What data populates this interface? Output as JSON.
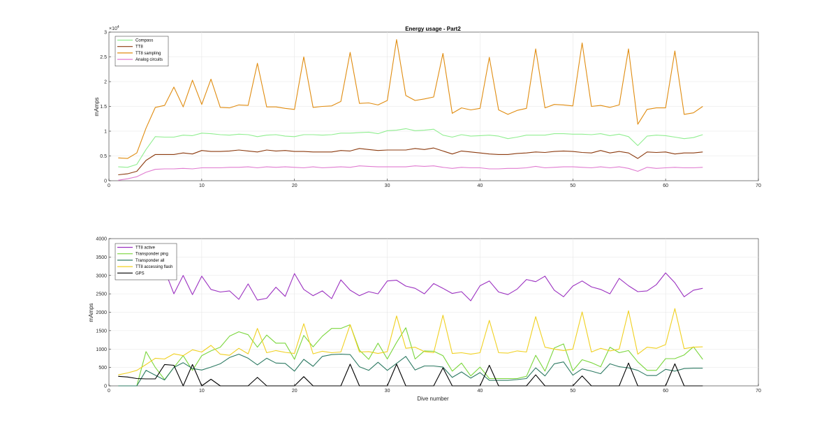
{
  "chart_data": [
    {
      "type": "line",
      "title": "Energy usage - Part2",
      "xlabel": "",
      "ylabel": "mAmps",
      "y_exponent_label": "×10",
      "y_exponent": "4",
      "xlim": [
        0,
        70
      ],
      "ylim": [
        0,
        30000
      ],
      "xticks": [
        0,
        10,
        20,
        30,
        40,
        50,
        60,
        70
      ],
      "yticks": [
        0,
        5000,
        10000,
        15000,
        20000,
        25000,
        30000
      ],
      "ytick_labels": [
        "0",
        "0.5",
        "1",
        "1.5",
        "2",
        "2.5",
        "3"
      ],
      "grid": true,
      "legend_position": "top-left",
      "x": [
        1,
        2,
        3,
        4,
        5,
        6,
        7,
        8,
        9,
        10,
        11,
        12,
        13,
        14,
        15,
        16,
        17,
        18,
        19,
        20,
        21,
        22,
        23,
        24,
        25,
        26,
        27,
        28,
        29,
        30,
        31,
        32,
        33,
        34,
        35,
        36,
        37,
        38,
        39,
        40,
        41,
        42,
        43,
        44,
        45,
        46,
        47,
        48,
        49,
        50,
        51,
        52,
        53,
        54,
        55,
        56,
        57,
        58,
        59,
        60,
        61,
        62,
        63,
        64
      ],
      "series": [
        {
          "name": "Compass",
          "color": "#90ee90",
          "values": [
            2800,
            2700,
            3300,
            6300,
            8900,
            8800,
            8800,
            9200,
            9100,
            9600,
            9500,
            9300,
            9200,
            9400,
            9300,
            8900,
            9200,
            9300,
            9000,
            8900,
            9300,
            9300,
            9200,
            9300,
            9600,
            9600,
            9700,
            9800,
            9500,
            10100,
            10200,
            10500,
            10100,
            10200,
            10400,
            9200,
            8800,
            9300,
            9000,
            9100,
            9200,
            9000,
            8500,
            8800,
            9200,
            9200,
            9200,
            9500,
            9500,
            9400,
            9400,
            9300,
            9500,
            9100,
            9400,
            8900,
            7100,
            9000,
            9200,
            9100,
            8800,
            8500,
            8700,
            9300
          ]
        },
        {
          "name": "TT8",
          "color": "#8b3a0e",
          "values": [
            1200,
            1400,
            1900,
            4100,
            5300,
            5300,
            5300,
            5600,
            5400,
            6100,
            5900,
            5900,
            6000,
            6200,
            6000,
            5800,
            6200,
            6000,
            6100,
            5900,
            5900,
            5800,
            5800,
            5800,
            6100,
            6000,
            6500,
            6300,
            6100,
            6200,
            6200,
            6200,
            6500,
            6300,
            6600,
            6000,
            5400,
            6000,
            5800,
            5600,
            5400,
            5300,
            5300,
            5500,
            5600,
            5800,
            5700,
            5900,
            6000,
            5900,
            5700,
            5600,
            6100,
            5600,
            5900,
            5600,
            4500,
            5800,
            5700,
            5800,
            5400,
            5600,
            5600,
            5800
          ]
        },
        {
          "name": "TT8 sampling",
          "color": "#e08c10",
          "values": [
            4600,
            4500,
            5600,
            10600,
            14800,
            15200,
            18900,
            14900,
            20300,
            15400,
            20500,
            14800,
            14700,
            15300,
            15200,
            23700,
            14900,
            14900,
            14600,
            14400,
            25000,
            14800,
            15000,
            15100,
            16000,
            25900,
            15600,
            15700,
            15300,
            16200,
            28500,
            17200,
            16200,
            16500,
            16900,
            25700,
            13600,
            14700,
            14300,
            14600,
            24900,
            14300,
            13400,
            14200,
            14600,
            26600,
            14700,
            15400,
            15300,
            15100,
            27800,
            15000,
            15200,
            14800,
            15300,
            26600,
            11400,
            14400,
            14700,
            14700,
            26200,
            13400,
            13700,
            15000
          ]
        },
        {
          "name": "Analog circuits",
          "color": "#e07bd0",
          "values": [
            100,
            400,
            800,
            1700,
            2300,
            2400,
            2400,
            2500,
            2400,
            2600,
            2600,
            2600,
            2700,
            2700,
            2800,
            2600,
            2800,
            2700,
            2800,
            2700,
            2600,
            2800,
            2600,
            2700,
            2800,
            2700,
            3000,
            2900,
            2800,
            2800,
            2800,
            2800,
            3000,
            2900,
            3000,
            2700,
            2500,
            2700,
            2600,
            2600,
            2400,
            2400,
            2500,
            2500,
            2600,
            2900,
            2600,
            2700,
            2800,
            2800,
            2700,
            2600,
            2800,
            2600,
            2800,
            2500,
            1900,
            2700,
            2500,
            2600,
            2700,
            2600,
            2600,
            2700
          ]
        }
      ]
    },
    {
      "type": "line",
      "title": "",
      "xlabel": "Dive number",
      "ylabel": "mAmps",
      "xlim": [
        0,
        70
      ],
      "ylim": [
        0,
        4000
      ],
      "xticks": [
        0,
        10,
        20,
        30,
        40,
        50,
        60,
        70
      ],
      "yticks": [
        0,
        500,
        1000,
        1500,
        2000,
        2500,
        3000,
        3500,
        4000
      ],
      "ytick_labels": [
        "0",
        "500",
        "1000",
        "1500",
        "2000",
        "2500",
        "3000",
        "3500",
        "4000"
      ],
      "grid": true,
      "legend_position": "top-left",
      "x": [
        1,
        2,
        3,
        4,
        5,
        6,
        7,
        8,
        9,
        10,
        11,
        12,
        13,
        14,
        15,
        16,
        17,
        18,
        19,
        20,
        21,
        22,
        23,
        24,
        25,
        26,
        27,
        28,
        29,
        30,
        31,
        32,
        33,
        34,
        35,
        36,
        37,
        38,
        39,
        40,
        41,
        42,
        43,
        44,
        45,
        46,
        47,
        48,
        49,
        50,
        51,
        52,
        53,
        54,
        55,
        56,
        57,
        58,
        59,
        60,
        61,
        62,
        63,
        64
      ],
      "series": [
        {
          "name": "TT8 active",
          "color": "#9b30c0",
          "values": [
            3300,
            3350,
            3250,
            3200,
            3150,
            3150,
            2500,
            3000,
            2480,
            2980,
            2620,
            2550,
            2580,
            2350,
            2770,
            2330,
            2380,
            2680,
            2430,
            3050,
            2620,
            2450,
            2580,
            2370,
            2880,
            2600,
            2450,
            2560,
            2500,
            2850,
            2870,
            2710,
            2650,
            2500,
            2780,
            2650,
            2510,
            2560,
            2310,
            2720,
            2850,
            2550,
            2480,
            2630,
            2890,
            2830,
            2980,
            2600,
            2420,
            2710,
            2850,
            2690,
            2620,
            2500,
            2920,
            2720,
            2560,
            2580,
            2750,
            3070,
            2800,
            2420,
            2600,
            2650
          ]
        },
        {
          "name": "Transponder ping",
          "color": "#7ad63c",
          "values": [
            0,
            0,
            0,
            930,
            500,
            170,
            500,
            820,
            420,
            820,
            950,
            1050,
            1350,
            1470,
            1390,
            1050,
            1380,
            1160,
            1160,
            720,
            1370,
            1060,
            1350,
            1560,
            1560,
            1660,
            970,
            720,
            1160,
            730,
            1180,
            1580,
            730,
            950,
            940,
            820,
            400,
            620,
            270,
            510,
            200,
            200,
            200,
            200,
            260,
            830,
            400,
            1030,
            1140,
            410,
            710,
            630,
            520,
            1050,
            900,
            960,
            650,
            420,
            420,
            740,
            740,
            840,
            1060,
            720
          ]
        },
        {
          "name": "Transponder all",
          "color": "#2d7a63",
          "values": [
            0,
            0,
            0,
            420,
            290,
            160,
            500,
            630,
            470,
            430,
            510,
            600,
            770,
            860,
            750,
            570,
            750,
            620,
            610,
            400,
            720,
            530,
            800,
            850,
            860,
            850,
            520,
            420,
            640,
            420,
            610,
            800,
            430,
            540,
            540,
            510,
            230,
            380,
            210,
            360,
            150,
            150,
            150,
            170,
            200,
            490,
            270,
            600,
            650,
            290,
            460,
            400,
            330,
            600,
            520,
            490,
            420,
            280,
            280,
            450,
            400,
            470,
            480,
            480
          ]
        },
        {
          "name": "TT8 accessing flash",
          "color": "#f0d020",
          "values": [
            300,
            350,
            420,
            580,
            750,
            730,
            870,
            820,
            980,
            920,
            1100,
            860,
            830,
            1020,
            870,
            1560,
            900,
            960,
            910,
            880,
            1690,
            870,
            940,
            900,
            920,
            1660,
            920,
            930,
            880,
            930,
            1900,
            1020,
            1050,
            930,
            900,
            1920,
            880,
            900,
            860,
            900,
            1780,
            900,
            890,
            950,
            920,
            1880,
            1050,
            1000,
            960,
            1000,
            2010,
            920,
            1020,
            950,
            1000,
            2040,
            860,
            1050,
            1020,
            1120,
            2100,
            1010,
            1050,
            1060
          ]
        },
        {
          "name": "GPS",
          "color": "#000000",
          "values": [
            260,
            240,
            200,
            190,
            190,
            580,
            560,
            0,
            580,
            0,
            180,
            0,
            0,
            0,
            0,
            230,
            0,
            0,
            0,
            0,
            250,
            0,
            0,
            0,
            0,
            590,
            0,
            0,
            0,
            0,
            590,
            0,
            0,
            0,
            0,
            490,
            0,
            0,
            0,
            0,
            560,
            0,
            0,
            0,
            0,
            300,
            0,
            0,
            0,
            0,
            270,
            0,
            0,
            0,
            0,
            620,
            0,
            0,
            0,
            0,
            600,
            0,
            0,
            0
          ]
        }
      ]
    }
  ]
}
